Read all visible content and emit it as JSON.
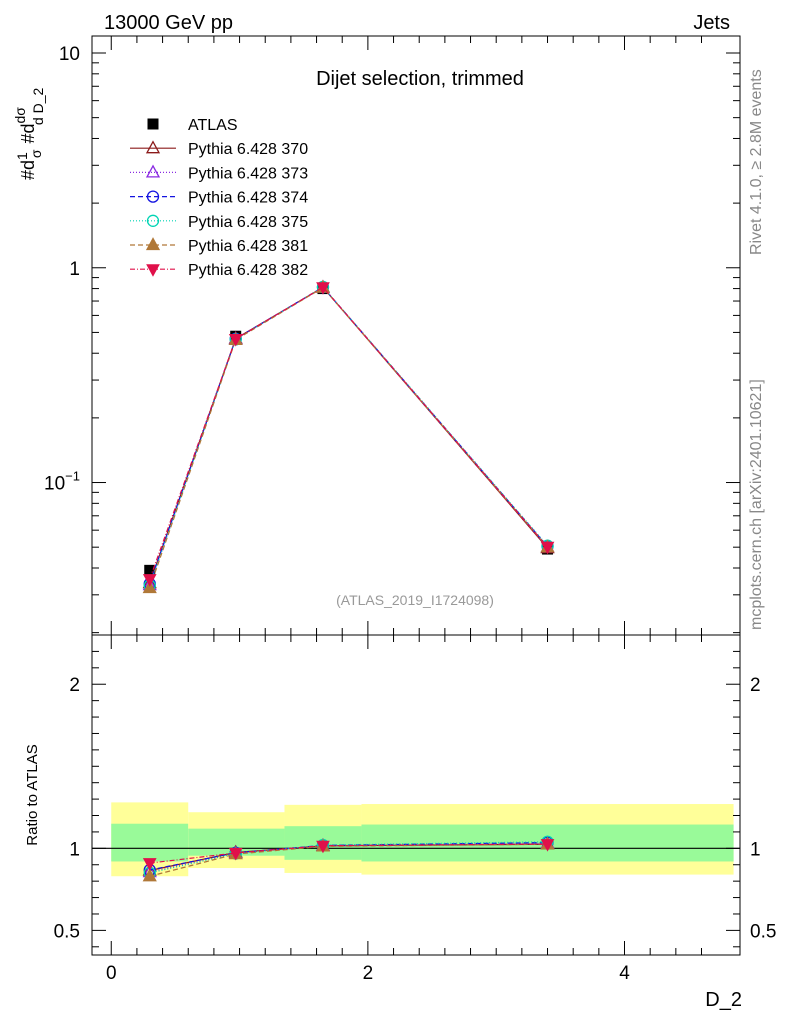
{
  "header": {
    "left": "13000 GeV pp",
    "right": "Jets"
  },
  "side_labels": {
    "top": "Rivet 4.1.0, ≥ 2.8M events",
    "bottom": "mcplots.cern.ch [arXiv:2401.10621]"
  },
  "chart_data": [
    {
      "type": "scatter",
      "panel": "main",
      "title": "Dijet selection, trimmed",
      "ylabel": "#d¹⁄σ #d dσ⁄d D_2",
      "ylabel_parts": {
        "a": "#d",
        "b": "1",
        "c": "σ",
        "d": "#d",
        "e": "dσ",
        "f": "d D_2"
      },
      "yscale": "log",
      "xlim": [
        -0.15,
        4.9
      ],
      "ylim": [
        0.0195,
        12
      ],
      "ytick_labels": [
        {
          "value": 0.1,
          "base": "10",
          "exp": "−1"
        },
        {
          "value": 1,
          "base": "1",
          "exp": ""
        },
        {
          "value": 10,
          "base": "10",
          "exp": ""
        }
      ],
      "watermark": "(ATLAS_2019_I1724098)",
      "legend_position": "top-left",
      "x": [
        0.3,
        0.97,
        1.65,
        3.4
      ],
      "series": [
        {
          "name": "ATLAS",
          "marker": "square-filled",
          "color": "#000000",
          "dash": "",
          "values": [
            0.039,
            0.48,
            0.8,
            0.049
          ]
        },
        {
          "name": "Pythia 6.428 370",
          "marker": "triangle-up-open",
          "color": "#8b1a1a",
          "dash": "",
          "values": [
            0.034,
            0.468,
            0.81,
            0.0495
          ]
        },
        {
          "name": "Pythia 6.428 373",
          "marker": "triangle-up-open",
          "color": "#8a2be2",
          "dash": "1,2",
          "values": [
            0.0333,
            0.465,
            0.81,
            0.05
          ]
        },
        {
          "name": "Pythia 6.428 374",
          "marker": "circle-open",
          "color": "#1414e0",
          "dash": "5,3",
          "values": [
            0.0338,
            0.467,
            0.812,
            0.0505
          ]
        },
        {
          "name": "Pythia 6.428 375",
          "marker": "circle-open",
          "color": "#00d4b4",
          "dash": "1,2",
          "values": [
            0.0331,
            0.464,
            0.814,
            0.0508
          ]
        },
        {
          "name": "Pythia 6.428 381",
          "marker": "triangle-up-filled",
          "color": "#b07838",
          "dash": "5,3",
          "values": [
            0.0323,
            0.462,
            0.808,
            0.05
          ]
        },
        {
          "name": "Pythia 6.428 382",
          "marker": "triangle-down-filled",
          "color": "#e0104a",
          "dash": "5,2,1,2",
          "values": [
            0.0355,
            0.466,
            0.812,
            0.0502
          ]
        }
      ]
    },
    {
      "type": "scatter",
      "panel": "ratio",
      "ylabel": "Ratio to ATLAS",
      "xlabel": "D_2",
      "yscale": "linear",
      "xlim": [
        -0.15,
        4.9
      ],
      "ylim": [
        0.35,
        2.3
      ],
      "xticks": [
        0,
        2,
        4
      ],
      "xtick_labels": [
        "0",
        "2",
        "4"
      ],
      "yticks": [
        0.5,
        1,
        2
      ],
      "ytick_labels": [
        "0.5",
        "1",
        "2"
      ],
      "bands": [
        {
          "xmin": 0.0,
          "xmax": 0.6,
          "inner": [
            0.92,
            1.15
          ],
          "outer": [
            0.83,
            1.28
          ]
        },
        {
          "xmin": 0.6,
          "xmax": 1.35,
          "inner": [
            0.955,
            1.12
          ],
          "outer": [
            0.88,
            1.22
          ]
        },
        {
          "xmin": 1.35,
          "xmax": 1.95,
          "inner": [
            0.93,
            1.135
          ],
          "outer": [
            0.85,
            1.265
          ]
        },
        {
          "xmin": 1.95,
          "xmax": 4.85,
          "inner": [
            0.92,
            1.145
          ],
          "outer": [
            0.84,
            1.27
          ]
        }
      ],
      "band_colors": {
        "inner": "#99fa99",
        "outer": "#ffff99"
      },
      "reference_line": 1,
      "x": [
        0.3,
        0.97,
        1.65,
        3.4
      ],
      "series": [
        {
          "name": "Pythia 6.428 370",
          "values": [
            0.865,
            0.975,
            1.015,
            1.025
          ]
        },
        {
          "name": "Pythia 6.428 373",
          "values": [
            0.855,
            0.97,
            1.015,
            1.03
          ]
        },
        {
          "name": "Pythia 6.428 374",
          "values": [
            0.868,
            0.973,
            1.018,
            1.035
          ]
        },
        {
          "name": "Pythia 6.428 375",
          "values": [
            0.85,
            0.968,
            1.02,
            1.04
          ]
        },
        {
          "name": "Pythia 6.428 381",
          "values": [
            0.83,
            0.965,
            1.012,
            1.025
          ]
        },
        {
          "name": "Pythia 6.428 382",
          "values": [
            0.91,
            0.972,
            1.016,
            1.026
          ]
        }
      ]
    }
  ]
}
